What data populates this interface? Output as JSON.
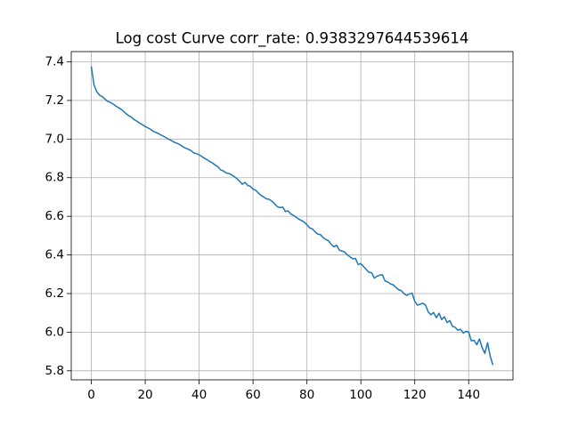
{
  "chart_data": {
    "type": "line",
    "title": "Log cost Curve corr_rate: 0.9383297644539614",
    "x": [
      0,
      1,
      2,
      3,
      4,
      5,
      6,
      7,
      8,
      9,
      10,
      11,
      12,
      13,
      14,
      15,
      16,
      17,
      18,
      19,
      20,
      21,
      22,
      23,
      24,
      25,
      26,
      27,
      28,
      29,
      30,
      31,
      32,
      33,
      34,
      35,
      36,
      37,
      38,
      39,
      40,
      41,
      42,
      43,
      44,
      45,
      46,
      47,
      48,
      49,
      50,
      51,
      52,
      53,
      54,
      55,
      56,
      57,
      58,
      59,
      60,
      61,
      62,
      63,
      64,
      65,
      66,
      67,
      68,
      69,
      70,
      71,
      72,
      73,
      74,
      75,
      76,
      77,
      78,
      79,
      80,
      81,
      82,
      83,
      84,
      85,
      86,
      87,
      88,
      89,
      90,
      91,
      92,
      93,
      94,
      95,
      96,
      97,
      98,
      99,
      100,
      101,
      102,
      103,
      104,
      105,
      106,
      107,
      108,
      109,
      110,
      111,
      112,
      113,
      114,
      115,
      116,
      117,
      118,
      119,
      120,
      121,
      122,
      123,
      124,
      125,
      126,
      127,
      128,
      129,
      130,
      131,
      132,
      133,
      134,
      135,
      136,
      137,
      138,
      139,
      140,
      141,
      142,
      143,
      144,
      145,
      146,
      147,
      148,
      149
    ],
    "series": [
      {
        "color": "#1f77b4",
        "values": [
          7.376,
          7.28,
          7.245,
          7.228,
          7.22,
          7.208,
          7.196,
          7.19,
          7.182,
          7.172,
          7.163,
          7.155,
          7.143,
          7.13,
          7.12,
          7.112,
          7.1,
          7.092,
          7.082,
          7.074,
          7.065,
          7.058,
          7.05,
          7.04,
          7.034,
          7.028,
          7.02,
          7.013,
          7.005,
          6.997,
          6.99,
          6.982,
          6.977,
          6.97,
          6.96,
          6.953,
          6.947,
          6.94,
          6.928,
          6.925,
          6.918,
          6.91,
          6.9,
          6.893,
          6.883,
          6.876,
          6.865,
          6.856,
          6.84,
          6.835,
          6.825,
          6.822,
          6.815,
          6.806,
          6.795,
          6.782,
          6.766,
          6.776,
          6.76,
          6.755,
          6.74,
          6.735,
          6.72,
          6.708,
          6.7,
          6.69,
          6.688,
          6.678,
          6.665,
          6.65,
          6.645,
          6.648,
          6.625,
          6.628,
          6.612,
          6.605,
          6.595,
          6.585,
          6.578,
          6.57,
          6.556,
          6.54,
          6.535,
          6.52,
          6.508,
          6.505,
          6.49,
          6.48,
          6.473,
          6.455,
          6.442,
          6.45,
          6.425,
          6.42,
          6.415,
          6.4,
          6.39,
          6.38,
          6.382,
          6.35,
          6.355,
          6.34,
          6.325,
          6.31,
          6.308,
          6.28,
          6.29,
          6.295,
          6.297,
          6.265,
          6.26,
          6.25,
          6.245,
          6.232,
          6.22,
          6.215,
          6.2,
          6.19,
          6.198,
          6.202,
          6.16,
          6.14,
          6.145,
          6.15,
          6.14,
          6.105,
          6.09,
          6.102,
          6.075,
          6.098,
          6.065,
          6.08,
          6.05,
          6.06,
          6.03,
          6.025,
          6.01,
          6.015,
          5.995,
          6.005,
          6.0,
          5.955,
          5.958,
          5.935,
          5.965,
          5.92,
          5.89,
          5.945,
          5.875,
          5.83
        ]
      }
    ],
    "xlim": [
      -7.45,
      156.45
    ],
    "xticks": [
      0,
      20,
      40,
      60,
      80,
      100,
      120,
      140
    ],
    "ylim": [
      5.753,
      7.453
    ],
    "yticks": [
      5.8,
      {
        "value": 6.0,
        "label": "6.0"
      },
      6.2,
      6.4,
      6.6,
      6.8,
      {
        "value": 7.0,
        "label": "7.0"
      },
      7.2,
      7.4
    ],
    "grid": true
  }
}
